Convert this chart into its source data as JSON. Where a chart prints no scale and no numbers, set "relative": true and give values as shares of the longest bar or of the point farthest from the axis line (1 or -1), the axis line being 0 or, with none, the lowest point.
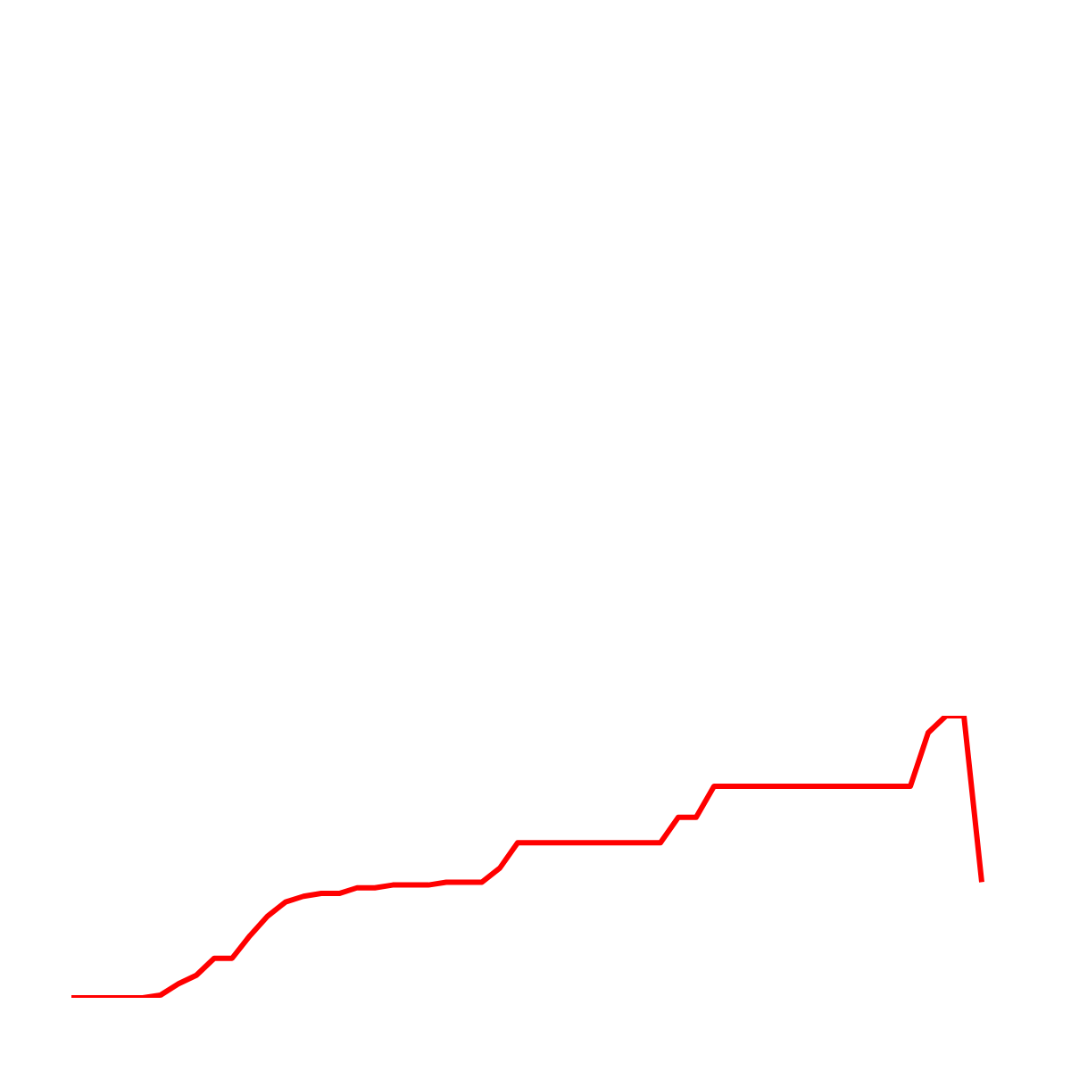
{
  "chart_data": {
    "type": "line",
    "relative": true,
    "color": "#ff0000",
    "marker": "none",
    "grid": false,
    "legend": false,
    "tick_labels": false,
    "categories": [
      null,
      null,
      null,
      null,
      null,
      null,
      null,
      null,
      null,
      null,
      null,
      null,
      null,
      null,
      null,
      null,
      null,
      null,
      null,
      null,
      null,
      null,
      null,
      null,
      null,
      null,
      null,
      null,
      null,
      null,
      null,
      null,
      null,
      null,
      null,
      null,
      null,
      null,
      null,
      null,
      null,
      null,
      null,
      null,
      null,
      null,
      null,
      null,
      null,
      null,
      null,
      null
    ],
    "values": [
      0,
      0,
      0,
      0,
      0,
      0.01,
      0.05,
      0.08,
      0.14,
      0.14,
      0.22,
      0.29,
      0.34,
      0.36,
      0.37,
      0.37,
      0.39,
      0.39,
      0.4,
      0.4,
      0.4,
      0.41,
      0.41,
      0.41,
      0.46,
      0.55,
      0.55,
      0.55,
      0.55,
      0.55,
      0.55,
      0.55,
      0.55,
      0.55,
      0.64,
      0.64,
      0.75,
      0.75,
      0.75,
      0.75,
      0.75,
      0.75,
      0.75,
      0.75,
      0.75,
      0.75,
      0.75,
      0.75,
      0.94,
      1,
      1,
      0.41
    ]
  }
}
